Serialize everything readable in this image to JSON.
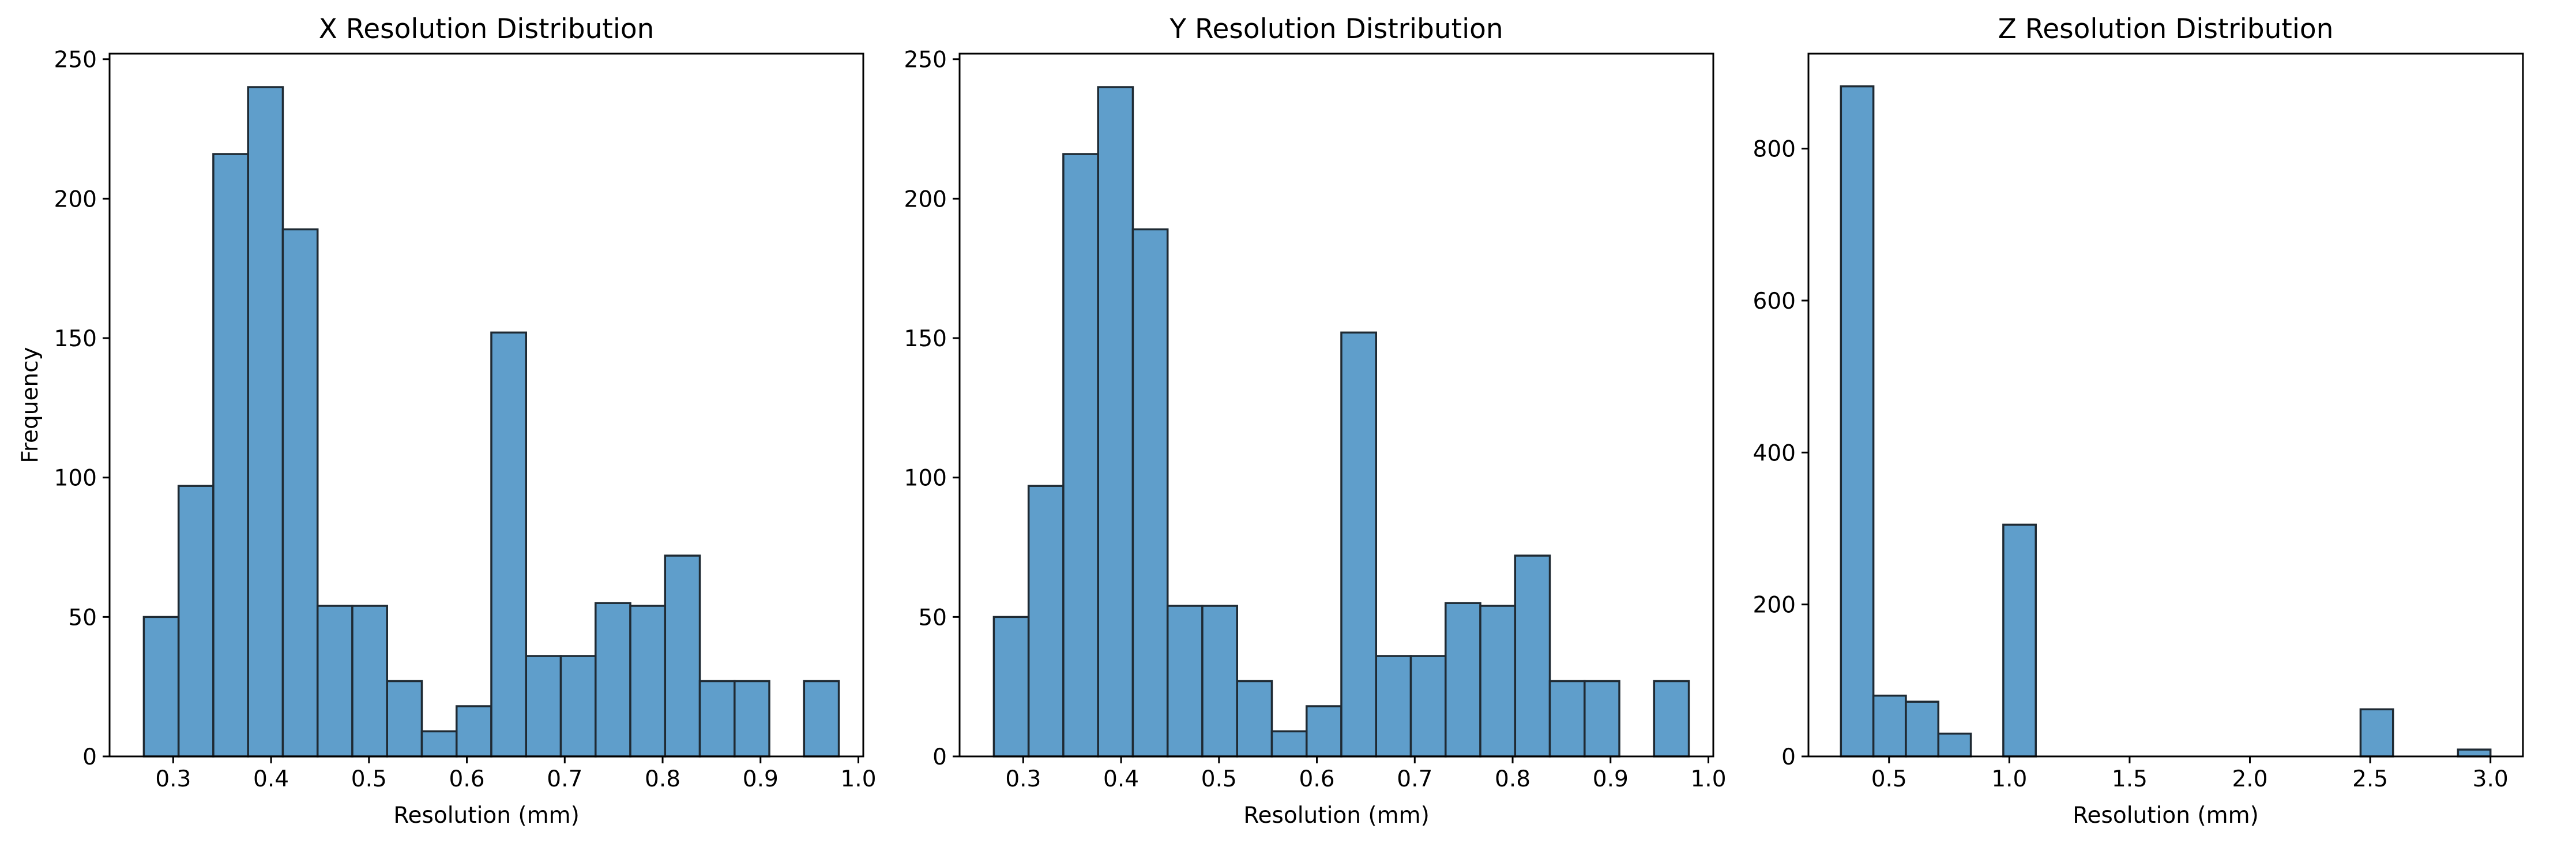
{
  "chart_data": [
    {
      "type": "bar",
      "title": "X Resolution Distribution",
      "xlabel": "Resolution (mm)",
      "ylabel": "Frequency",
      "xlim": [
        0.235,
        1.005
      ],
      "ylim": [
        0,
        252
      ],
      "xticks": [
        0.3,
        0.4,
        0.5,
        0.6,
        0.7,
        0.8,
        0.9,
        1.0
      ],
      "xtick_labels": [
        "0.3",
        "0.4",
        "0.5",
        "0.6",
        "0.7",
        "0.8",
        "0.9",
        "1.0"
      ],
      "yticks": [
        0,
        50,
        100,
        150,
        200,
        250
      ],
      "ytick_labels": [
        "0",
        "50",
        "100",
        "150",
        "200",
        "250"
      ],
      "bin_edges": [
        0.27,
        0.3055,
        0.341,
        0.3765,
        0.412,
        0.4475,
        0.483,
        0.5185,
        0.554,
        0.5895,
        0.625,
        0.6605,
        0.696,
        0.7315,
        0.767,
        0.8025,
        0.838,
        0.8735,
        0.909,
        0.9445,
        0.98
      ],
      "values": [
        50,
        97,
        216,
        240,
        189,
        54,
        54,
        27,
        9,
        18,
        152,
        36,
        36,
        55,
        54,
        72,
        27,
        27,
        0,
        27
      ],
      "grid": false
    },
    {
      "type": "bar",
      "title": "Y Resolution Distribution",
      "xlabel": "Resolution (mm)",
      "ylabel": "",
      "xlim": [
        0.235,
        1.005
      ],
      "ylim": [
        0,
        252
      ],
      "xticks": [
        0.3,
        0.4,
        0.5,
        0.6,
        0.7,
        0.8,
        0.9,
        1.0
      ],
      "xtick_labels": [
        "0.3",
        "0.4",
        "0.5",
        "0.6",
        "0.7",
        "0.8",
        "0.9",
        "1.0"
      ],
      "yticks": [
        0,
        50,
        100,
        150,
        200,
        250
      ],
      "ytick_labels": [
        "0",
        "50",
        "100",
        "150",
        "200",
        "250"
      ],
      "bin_edges": [
        0.27,
        0.3055,
        0.341,
        0.3765,
        0.412,
        0.4475,
        0.483,
        0.5185,
        0.554,
        0.5895,
        0.625,
        0.6605,
        0.696,
        0.7315,
        0.767,
        0.8025,
        0.838,
        0.8735,
        0.909,
        0.9445,
        0.98
      ],
      "values": [
        50,
        97,
        216,
        240,
        189,
        54,
        54,
        27,
        9,
        18,
        152,
        36,
        36,
        55,
        54,
        72,
        27,
        27,
        0,
        27
      ],
      "grid": false
    },
    {
      "type": "bar",
      "title": "Z Resolution Distribution",
      "xlabel": "Resolution (mm)",
      "ylabel": "",
      "xlim": [
        0.165,
        3.135
      ],
      "ylim": [
        0,
        925
      ],
      "xticks": [
        0.5,
        1.0,
        1.5,
        2.0,
        2.5,
        3.0
      ],
      "xtick_labels": [
        "0.5",
        "1.0",
        "1.5",
        "2.0",
        "2.5",
        "3.0"
      ],
      "yticks": [
        0,
        200,
        400,
        600,
        800
      ],
      "ytick_labels": [
        "0",
        "200",
        "400",
        "600",
        "800"
      ],
      "bin_edges": [
        0.3,
        0.435,
        0.57,
        0.705,
        0.84,
        0.975,
        1.11,
        1.245,
        1.38,
        1.515,
        1.65,
        1.785,
        1.92,
        2.055,
        2.19,
        2.325,
        2.46,
        2.595,
        2.73,
        2.865,
        3.0
      ],
      "values": [
        882,
        80,
        72,
        30,
        0,
        305,
        0,
        0,
        0,
        0,
        0,
        0,
        0,
        0,
        0,
        0,
        62,
        0,
        0,
        9
      ],
      "grid": false
    }
  ]
}
